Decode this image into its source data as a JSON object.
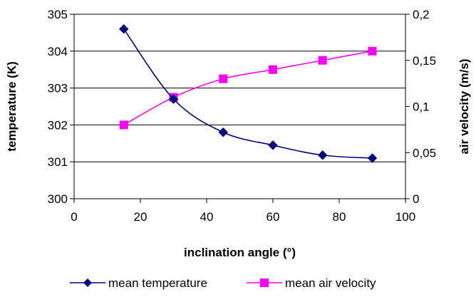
{
  "chart_data": {
    "type": "line",
    "title": "",
    "xlabel": "inclination angle (°)",
    "ylabel_left": "temperature (K)",
    "ylabel_right": "air velocity (m/s)",
    "xlim": [
      0,
      100
    ],
    "ylim_left": [
      300,
      305
    ],
    "ylim_right": [
      0,
      0.2
    ],
    "x_ticks": [
      "0",
      "20",
      "40",
      "60",
      "80",
      "100"
    ],
    "y_left_ticks": [
      "300",
      "301",
      "302",
      "303",
      "304",
      "305"
    ],
    "y_right_ticks": [
      "0",
      "0,05",
      "0,1",
      "0,15",
      "0,2"
    ],
    "grid": "horizontal",
    "legend_position": "bottom",
    "x": [
      15,
      30,
      45,
      60,
      75,
      90
    ],
    "series": [
      {
        "name": "mean temperature",
        "axis": "left",
        "color": "#000080",
        "marker": "diamond",
        "values": [
          304.6,
          302.7,
          301.8,
          301.45,
          301.18,
          301.1
        ]
      },
      {
        "name": "mean air velocity",
        "axis": "right",
        "color": "#FF00FF",
        "marker": "square",
        "values": [
          0.08,
          0.11,
          0.13,
          0.14,
          0.15,
          0.16
        ]
      }
    ]
  }
}
